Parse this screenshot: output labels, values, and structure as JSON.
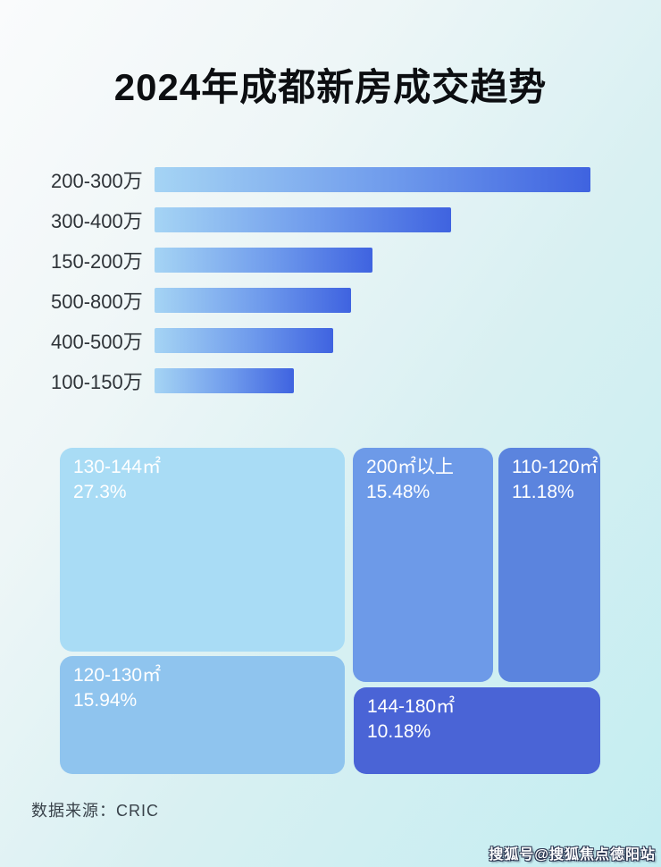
{
  "page": {
    "title": "2024年成都新房成交趋势",
    "source": "数据来源：CRIC",
    "watermark": "搜狐号@搜狐焦点德阳站"
  },
  "colors": {
    "background_start": "#fafbfc",
    "background_mid": "#d8f0f2",
    "background_end": "#c3edf1",
    "title_text": "#0c0e11",
    "axis_label_text": "#2e3338",
    "bar_gradient_start": "#a5d4f4",
    "bar_gradient_mid": "#6e9aec",
    "bar_gradient_end": "#3f63e0",
    "tile_text": "#ffffff"
  },
  "chart_data": [
    {
      "type": "bar",
      "orientation": "horizontal",
      "categories": [
        "200-300万",
        "300-400万",
        "150-200万",
        "500-800万",
        "400-500万",
        "100-150万"
      ],
      "values_pct_of_max": [
        100,
        68,
        50,
        45,
        41,
        32
      ],
      "value_labels_shown": false,
      "axis_shown": false,
      "legend": "none",
      "bar_style": "gradient light-blue to royal-blue, left to right"
    },
    {
      "type": "treemap",
      "categories": [
        "130-144㎡",
        "200㎡以上",
        "110-120㎡",
        "120-130㎡",
        "144-180㎡"
      ],
      "values": [
        27.3,
        15.48,
        11.18,
        15.94,
        10.18
      ],
      "display_values": [
        "27.3%",
        "15.48%",
        "11.18%",
        "15.94%",
        "10.18%"
      ],
      "tile_colors": [
        "#a9dcf5",
        "#6d9ae8",
        "#5b84de",
        "#8fc4ee",
        "#4a64d6"
      ],
      "unit": "%",
      "legend": "none"
    }
  ]
}
